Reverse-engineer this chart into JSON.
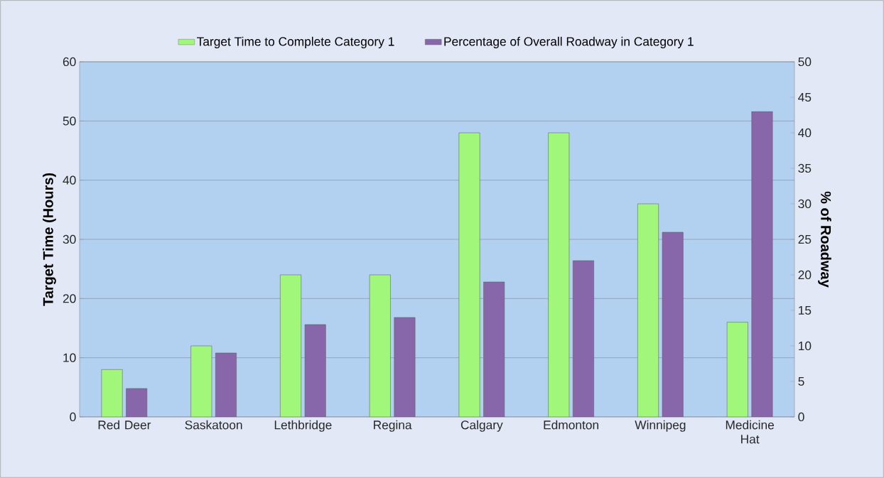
{
  "chart_data": {
    "type": "bar",
    "categories": [
      "Red Deer",
      "Saskatoon",
      "Lethbridge",
      "Regina",
      "Calgary",
      "Edmonton",
      "Winnipeg",
      "Medicine Hat"
    ],
    "ylabel": "Target Time (Hours)",
    "y2label": "% of Roadway",
    "ylim": [
      0,
      60
    ],
    "yticks": [
      0,
      10,
      20,
      30,
      40,
      50,
      60
    ],
    "y2lim": [
      0,
      50
    ],
    "y2ticks": [
      0,
      5,
      10,
      15,
      20,
      25,
      30,
      35,
      40,
      45,
      50
    ],
    "grid": "y",
    "legend": "top",
    "series": [
      {
        "name": "Target Time to Complete Category 1",
        "color": "#a0f77a",
        "values": [
          8,
          12,
          24,
          24,
          48,
          48,
          36,
          16
        ]
      },
      {
        "name": "Percentage of Overall Roadway in Category 1",
        "color": "#8866aa",
        "axis": "y2",
        "values": [
          4,
          9,
          13,
          14,
          19,
          22,
          26,
          43
        ]
      }
    ]
  }
}
